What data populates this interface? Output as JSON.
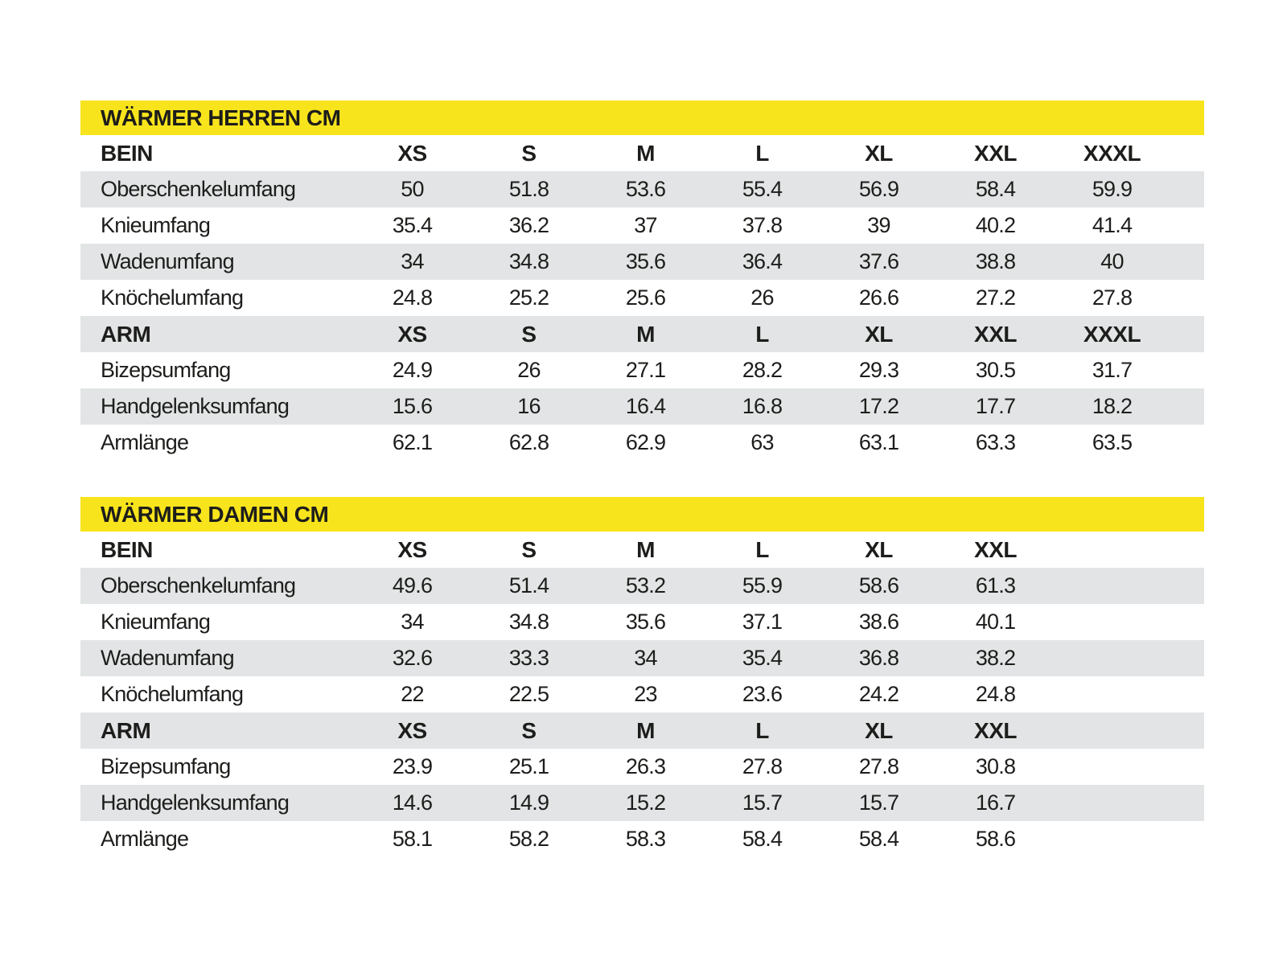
{
  "colors": {
    "accent_yellow": "#f8e41c",
    "row_gray": "#e2e4e5",
    "text": "#1d1d1b",
    "background": "#ffffff"
  },
  "chart_data": [
    {
      "type": "table",
      "title": "WÄRMER HERREN CM",
      "unit": "cm",
      "sections": [
        {
          "header": "BEIN",
          "sizes": [
            "XS",
            "S",
            "M",
            "L",
            "XL",
            "XXL",
            "XXXL"
          ],
          "rows": [
            {
              "label": "Oberschenkelumfang",
              "values": [
                "50",
                "51.8",
                "53.6",
                "55.4",
                "56.9",
                "58.4",
                "59.9"
              ]
            },
            {
              "label": "Knieumfang",
              "values": [
                "35.4",
                "36.2",
                "37",
                "37.8",
                "39",
                "40.2",
                "41.4"
              ]
            },
            {
              "label": "Wadenumfang",
              "values": [
                "34",
                "34.8",
                "35.6",
                "36.4",
                "37.6",
                "38.8",
                "40"
              ]
            },
            {
              "label": "Knöchelumfang",
              "values": [
                "24.8",
                "25.2",
                "25.6",
                "26",
                "26.6",
                "27.2",
                "27.8"
              ]
            }
          ]
        },
        {
          "header": "ARM",
          "sizes": [
            "XS",
            "S",
            "M",
            "L",
            "XL",
            "XXL",
            "XXXL"
          ],
          "rows": [
            {
              "label": "Bizepsumfang",
              "values": [
                "24.9",
                "26",
                "27.1",
                "28.2",
                "29.3",
                "30.5",
                "31.7"
              ]
            },
            {
              "label": "Handgelenksumfang",
              "values": [
                "15.6",
                "16",
                "16.4",
                "16.8",
                "17.2",
                "17.7",
                "18.2"
              ]
            },
            {
              "label": "Armlänge",
              "values": [
                "62.1",
                "62.8",
                "62.9",
                "63",
                "63.1",
                "63.3",
                "63.5"
              ]
            }
          ]
        }
      ]
    },
    {
      "type": "table",
      "title": "WÄRMER DAMEN CM",
      "unit": "cm",
      "sections": [
        {
          "header": "BEIN",
          "sizes": [
            "XS",
            "S",
            "M",
            "L",
            "XL",
            "XXL"
          ],
          "rows": [
            {
              "label": "Oberschenkelumfang",
              "values": [
                "49.6",
                "51.4",
                "53.2",
                "55.9",
                "58.6",
                "61.3"
              ]
            },
            {
              "label": "Knieumfang",
              "values": [
                "34",
                "34.8",
                "35.6",
                "37.1",
                "38.6",
                "40.1"
              ]
            },
            {
              "label": "Wadenumfang",
              "values": [
                "32.6",
                "33.3",
                "34",
                "35.4",
                "36.8",
                "38.2"
              ]
            },
            {
              "label": "Knöchelumfang",
              "values": [
                "22",
                "22.5",
                "23",
                "23.6",
                "24.2",
                "24.8"
              ]
            }
          ]
        },
        {
          "header": "ARM",
          "sizes": [
            "XS",
            "S",
            "M",
            "L",
            "XL",
            "XXL"
          ],
          "rows": [
            {
              "label": "Bizepsumfang",
              "values": [
                "23.9",
                "25.1",
                "26.3",
                "27.8",
                "27.8",
                "30.8"
              ]
            },
            {
              "label": "Handgelenksumfang",
              "values": [
                "14.6",
                "14.9",
                "15.2",
                "15.7",
                "15.7",
                "16.7"
              ]
            },
            {
              "label": "Armlänge",
              "values": [
                "58.1",
                "58.2",
                "58.3",
                "58.4",
                "58.4",
                "58.6"
              ]
            }
          ]
        }
      ]
    }
  ]
}
